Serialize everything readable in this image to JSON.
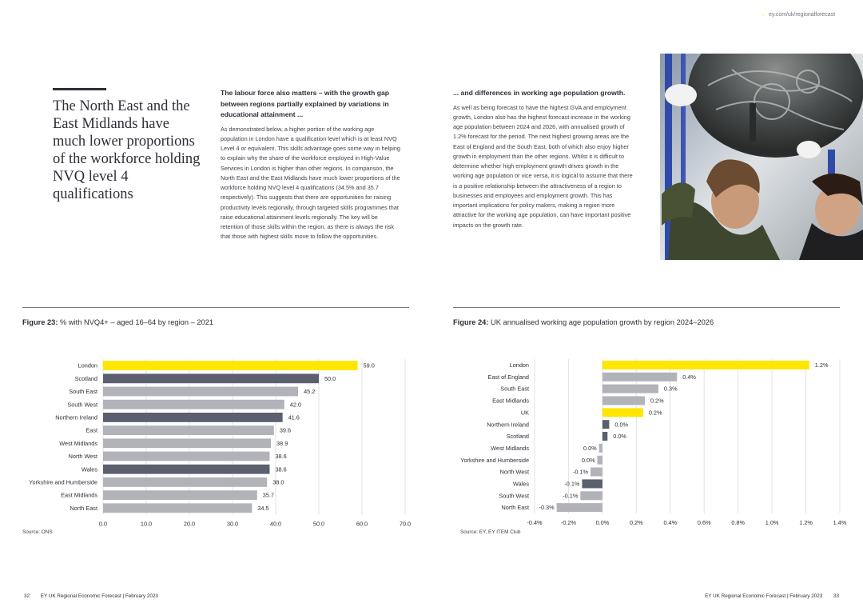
{
  "header": {
    "url": "ey.com/uk/regionalforecast"
  },
  "headline": "The North East and the East Midlands have much lower proportions of the workforce holding NVQ level 4 qualifications",
  "column1": {
    "title": "The labour force also matters – with the growth gap between regions partially explained by variations in educational attainment ...",
    "body": "As demonstrated below, a higher portion of the working age population in London have a qualification level which is at least NVQ Level 4 or equivalent. This skills advantage goes some way in helping to explain why the share of the workforce employed in High-Value Services in London is higher than other regions. In comparison, the North East and the East Midlands have much lower proportions of the workforce holding NVQ level 4 qualifications (34.5% and 35.7 respectively). This suggests that there are opportunities for raising productivity levels regionally, through targeted skills programmes that raise educational attainment levels regionally. The key will be retention of those skills within the region, as there is always the risk that those with highest skills move to follow the opportunities."
  },
  "column2": {
    "title": "... and differences in working age population growth.",
    "body": "As well as being forecast to have the highest GVA and employment growth, London also has the highest forecast increase in the working age population between 2024 and 2026, with annualised growth of 1.2% forecast for the period. The next highest growing areas are the East of England and the South East, both of which also enjoy higher growth in employment than the other regions. Whilst it is difficult to determine whether high employment growth drives growth in the working age population or vice versa, it is logical to assume that there is a positive relationship between the attractiveness of a region to businesses and employees and employment growth. This has important implications for policy makers, making a region more attractive for the working age population, can have important positive impacts on the growth rate."
  },
  "figure23": {
    "label": "Figure 23:",
    "title": " % with NVQ4+ – aged 16–64 by region – 2021",
    "source": "Source: ONS"
  },
  "figure24": {
    "label": "Figure 24:",
    "title": " UK annualised working age population growth by region 2024–2026",
    "source": "Source: EY, EY ITEM Club"
  },
  "footer": {
    "left_page": "32",
    "left_text": "EY UK Regional Economic Forecast  |  February 2023",
    "right_text": "EY UK Regional Economic Forecast  |  February 2023",
    "right_page": "33"
  },
  "colors": {
    "highlight": "#ffe600",
    "dark": "#5b5f6e",
    "light": "#b2b2b9",
    "text": "#2e2e38"
  },
  "chart_data": [
    {
      "type": "bar",
      "orientation": "horizontal",
      "categories": [
        "London",
        "Scotland",
        "South East",
        "South West",
        "Northern Ireland",
        "East",
        "West Midlands",
        "North West",
        "Wales",
        "Yorkshire and Humberside",
        "East Midlands",
        "North East"
      ],
      "values": [
        59.0,
        50.0,
        45.2,
        42.0,
        41.6,
        39.6,
        38.9,
        38.6,
        38.6,
        38.0,
        35.7,
        34.5
      ],
      "value_labels": [
        "59.0",
        "50.0",
        "45.2",
        "42.0",
        "41.6",
        "39.6",
        "38.9",
        "38.6",
        "38.6",
        "38.0",
        "35.7",
        "34.5"
      ],
      "bar_colors": [
        "highlight",
        "dark",
        "light",
        "light",
        "dark",
        "light",
        "light",
        "light",
        "dark",
        "light",
        "light",
        "light"
      ],
      "xlim": [
        0,
        70
      ],
      "xticks": [
        0,
        10,
        20,
        30,
        40,
        50,
        60,
        70
      ],
      "xtick_labels": [
        "0.0",
        "10.0",
        "20.0",
        "30.0",
        "40.0",
        "50.0",
        "60.0",
        "70.0"
      ],
      "grid": true
    },
    {
      "type": "bar",
      "orientation": "horizontal",
      "categories": [
        "London",
        "East of England",
        "South East",
        "East Midlands",
        "UK",
        "Northern Ireland",
        "Scotland",
        "West Midlands",
        "Yorkshire and Humberside",
        "North West",
        "Wales",
        "South West",
        "North East"
      ],
      "values": [
        1.22,
        0.44,
        0.33,
        0.25,
        0.24,
        0.04,
        0.03,
        -0.02,
        -0.03,
        -0.07,
        -0.12,
        -0.13,
        -0.27
      ],
      "value_labels": [
        "1.2%",
        "0.4%",
        "0.3%",
        "0.2%",
        "0.2%",
        "0.0%",
        "0.0%",
        "0.0%",
        "0.0%",
        "-0.1%",
        "-0.1%",
        "-0.1%",
        "-0.3%"
      ],
      "bar_colors": [
        "highlight",
        "light",
        "light",
        "light",
        "highlight",
        "dark",
        "dark",
        "light",
        "light",
        "light",
        "dark",
        "light",
        "light"
      ],
      "xlim": [
        -0.4,
        1.4
      ],
      "xticks": [
        -0.4,
        -0.2,
        0.0,
        0.2,
        0.4,
        0.6,
        0.8,
        1.0,
        1.2,
        1.4
      ],
      "xtick_labels": [
        "-0.4%",
        "-0.2%",
        "0.0%",
        "0.2%",
        "0.4%",
        "0.6%",
        "0.8%",
        "1.0%",
        "1.2%",
        "1.4%"
      ],
      "grid": true
    }
  ]
}
